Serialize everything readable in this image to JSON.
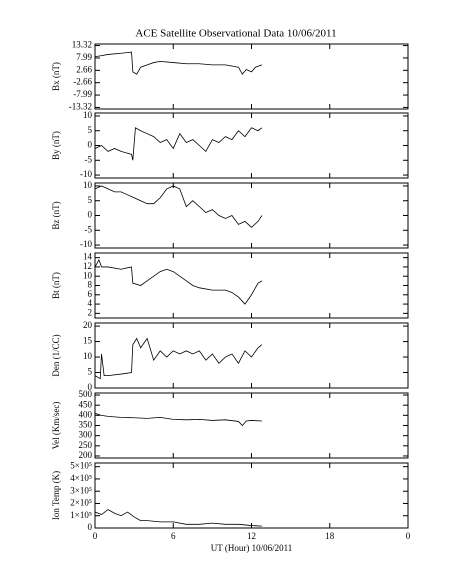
{
  "chart_data": [
    {
      "type": "line",
      "title": "ACE Satellite Observational Data   10/06/2011",
      "ylabel": "Bx (nT)",
      "xlim": [
        0,
        24
      ],
      "xticks": [
        0,
        6,
        12,
        18,
        {
          "value": 24,
          "label": "0"
        }
      ],
      "ylim": [
        -14,
        14
      ],
      "yticks": [
        13.32,
        7.99,
        2.66,
        -2.66,
        -7.99,
        -13.32
      ],
      "color": "#000000",
      "x": [
        0,
        0.5,
        1,
        2,
        2.8,
        2.9,
        3.2,
        3.5,
        4,
        4.5,
        5,
        6,
        7,
        8,
        9,
        10,
        11,
        11.3,
        11.6,
        12,
        12.3,
        12.8
      ],
      "values": [
        8.5,
        9,
        9.5,
        10,
        10.5,
        2,
        1,
        4,
        5,
        6,
        6.5,
        6,
        5.5,
        5.5,
        5,
        5,
        4,
        1,
        3,
        2,
        4,
        5
      ]
    },
    {
      "type": "line",
      "ylabel": "By (nT)",
      "xlim": [
        0,
        24
      ],
      "xticks": [
        0,
        6,
        12,
        18,
        {
          "value": 24,
          "label": "0"
        }
      ],
      "ylim": [
        -11,
        11
      ],
      "yticks": [
        -10,
        -5,
        0,
        5,
        10
      ],
      "color": "#000000",
      "x": [
        0,
        0.5,
        1,
        1.5,
        2,
        2.8,
        2.9,
        3.1,
        3.5,
        4,
        4.5,
        5,
        5.5,
        6,
        6.5,
        7,
        7.5,
        8,
        8.5,
        9,
        9.5,
        10,
        10.5,
        11,
        11.5,
        12,
        12.5,
        12.8
      ],
      "values": [
        -1,
        0,
        -2,
        -1,
        -2,
        -3,
        -5,
        6,
        5,
        4,
        3,
        1,
        2,
        -1,
        4,
        1,
        2,
        0,
        -2,
        2,
        1,
        3,
        2,
        5,
        3,
        6,
        5,
        6
      ]
    },
    {
      "type": "line",
      "ylabel": "Bz (nT)",
      "xlim": [
        0,
        24
      ],
      "xticks": [
        0,
        6,
        12,
        18,
        {
          "value": 24,
          "label": "0"
        }
      ],
      "ylim": [
        -11,
        11
      ],
      "yticks": [
        -10,
        -5,
        0,
        5,
        10
      ],
      "color": "#000000",
      "x": [
        0,
        0.5,
        1,
        1.5,
        2,
        2.5,
        3,
        3.5,
        4,
        4.5,
        5,
        5.5,
        6,
        6.5,
        7,
        7.5,
        8,
        8.5,
        9,
        9.5,
        10,
        10.5,
        11,
        11.5,
        12,
        12.5,
        12.8
      ],
      "values": [
        9,
        10,
        9,
        8,
        8,
        7,
        6,
        5,
        4,
        4,
        6,
        9,
        10,
        9,
        3,
        5,
        3,
        1,
        2,
        0,
        -1,
        0,
        -3,
        -2,
        -4,
        -2,
        0
      ]
    },
    {
      "type": "line",
      "ylabel": "Bt (nT)",
      "xlim": [
        0,
        24
      ],
      "xticks": [
        0,
        6,
        12,
        18,
        {
          "value": 24,
          "label": "0"
        }
      ],
      "ylim": [
        1,
        15
      ],
      "yticks": [
        2,
        4,
        6,
        8,
        10,
        12,
        14
      ],
      "color": "#000000",
      "x": [
        0,
        0.3,
        0.5,
        1,
        2,
        2.8,
        2.9,
        3.5,
        4,
        4.5,
        5,
        5.5,
        6,
        6.5,
        7,
        7.5,
        8,
        9,
        10,
        10.5,
        11,
        11.5,
        12,
        12.5,
        12.8
      ],
      "values": [
        12,
        13.5,
        12,
        12,
        11.5,
        12,
        8.5,
        8,
        9,
        10,
        11,
        11.5,
        11,
        10,
        9,
        8,
        7.5,
        7,
        7,
        6.5,
        5.5,
        4,
        6,
        8.5,
        9
      ]
    },
    {
      "type": "line",
      "ylabel": "Den (1/CC)",
      "xlim": [
        0,
        24
      ],
      "xticks": [
        0,
        6,
        12,
        18,
        {
          "value": 24,
          "label": "0"
        }
      ],
      "ylim": [
        0,
        21
      ],
      "yticks": [
        0,
        5,
        10,
        15,
        20
      ],
      "color": "#000000",
      "x": [
        0,
        0.4,
        0.5,
        0.7,
        1,
        2,
        2.8,
        2.9,
        3.2,
        3.5,
        4,
        4.5,
        5,
        5.5,
        6,
        6.5,
        7,
        7.5,
        8,
        8.5,
        9,
        9.5,
        10,
        10.5,
        11,
        11.5,
        12,
        12.5,
        12.8
      ],
      "values": [
        4,
        3,
        11,
        4,
        4,
        4.5,
        5,
        14,
        16,
        13,
        16,
        9,
        12,
        10,
        12,
        11,
        12,
        11,
        12,
        9,
        11,
        8,
        10,
        11,
        8,
        12,
        10,
        13,
        14
      ]
    },
    {
      "type": "line",
      "ylabel": "Vel (Km/sec)",
      "xlim": [
        0,
        24
      ],
      "xticks": [
        0,
        6,
        12,
        18,
        {
          "value": 24,
          "label": "0"
        }
      ],
      "ylim": [
        190,
        510
      ],
      "yticks": [
        200,
        250,
        300,
        350,
        400,
        450,
        500
      ],
      "color": "#000000",
      "x": [
        0,
        0.5,
        1,
        2,
        3,
        4,
        5,
        6,
        7,
        8,
        9,
        10,
        11,
        11.3,
        11.6,
        12,
        12.8
      ],
      "values": [
        410,
        400,
        395,
        390,
        388,
        385,
        390,
        380,
        378,
        380,
        375,
        378,
        370,
        350,
        372,
        375,
        372
      ]
    },
    {
      "type": "line",
      "ylabel": "Ion Temp (K)",
      "xlabel": "UT (Hour)  10/06/2011",
      "xlim": [
        0,
        24
      ],
      "xticks": [
        0,
        6,
        12,
        18,
        {
          "value": 24,
          "label": "0"
        }
      ],
      "ylim": [
        0,
        530000
      ],
      "yticks": [
        0,
        {
          "value": 100000,
          "label": "1×10⁵"
        },
        {
          "value": 200000,
          "label": "2×10⁵"
        },
        {
          "value": 300000,
          "label": "3×10⁵"
        },
        {
          "value": 400000,
          "label": "4×10⁵"
        },
        {
          "value": 500000,
          "label": "5×10⁵"
        }
      ],
      "color": "#000000",
      "x": [
        0,
        0.5,
        1,
        1.5,
        2,
        2.5,
        3,
        3.5,
        4,
        5,
        6,
        7,
        8,
        9,
        10,
        11,
        12,
        12.8
      ],
      "values": [
        130000,
        110000,
        150000,
        120000,
        100000,
        130000,
        90000,
        60000,
        60000,
        50000,
        50000,
        30000,
        30000,
        40000,
        30000,
        30000,
        20000,
        15000
      ]
    }
  ]
}
